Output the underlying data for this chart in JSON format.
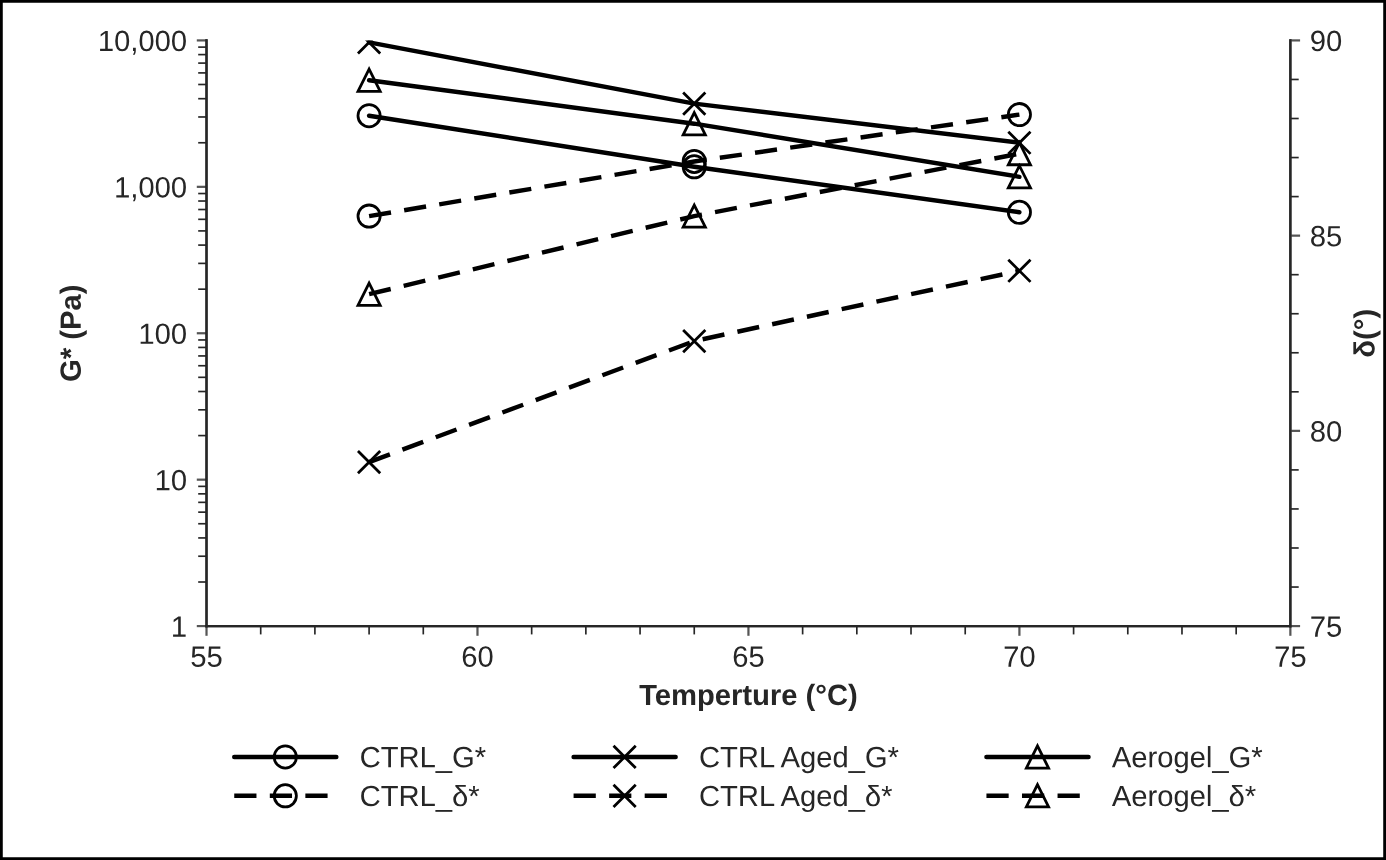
{
  "chart_data": {
    "type": "line",
    "xlabel": "Temperture (°C)",
    "ylabel": "G* (Pa)",
    "y2label": "δ(°)",
    "x": [
      58,
      64,
      70
    ],
    "xlim": [
      55,
      75
    ],
    "xticks": [
      55,
      60,
      65,
      70,
      75
    ],
    "log": "y",
    "ylim": [
      1,
      10000
    ],
    "yticks": [
      1,
      10,
      100,
      {
        "value": 1000,
        "label": "1,000"
      },
      {
        "value": 10000,
        "label": "10,000"
      }
    ],
    "y2lim": [
      75,
      90
    ],
    "y2ticks": [
      75,
      80,
      85,
      90
    ],
    "grid": false,
    "legend": "bottom",
    "series": [
      {
        "name": "CTRL_G*",
        "color": "#000000",
        "marker": "circle",
        "line_style": "solid",
        "values": [
          3060,
          1370,
          670
        ]
      },
      {
        "name": "CTRL Aged_G*",
        "color": "#000000",
        "marker": "cross",
        "line_style": "solid",
        "values": [
          9700,
          3700,
          2000
        ]
      },
      {
        "name": "Aerogel_G*",
        "color": "#000000",
        "marker": "triangle",
        "line_style": "solid",
        "values": [
          5340,
          2700,
          1170
        ]
      },
      {
        "name": "CTRL_δ*",
        "color": "#000000",
        "marker": "circle",
        "line_style": "dashed",
        "axis": "y2",
        "values": [
          85.5,
          86.9,
          88.1
        ]
      },
      {
        "name": "CTRL Aged_δ*",
        "color": "#000000",
        "marker": "cross",
        "line_style": "dashed",
        "axis": "y2",
        "values": [
          79.2,
          82.3,
          84.1
        ]
      },
      {
        "name": "Aerogel_δ*",
        "color": "#000000",
        "marker": "triangle",
        "line_style": "dashed",
        "axis": "y2",
        "values": [
          83.5,
          85.5,
          87.1
        ]
      }
    ]
  }
}
